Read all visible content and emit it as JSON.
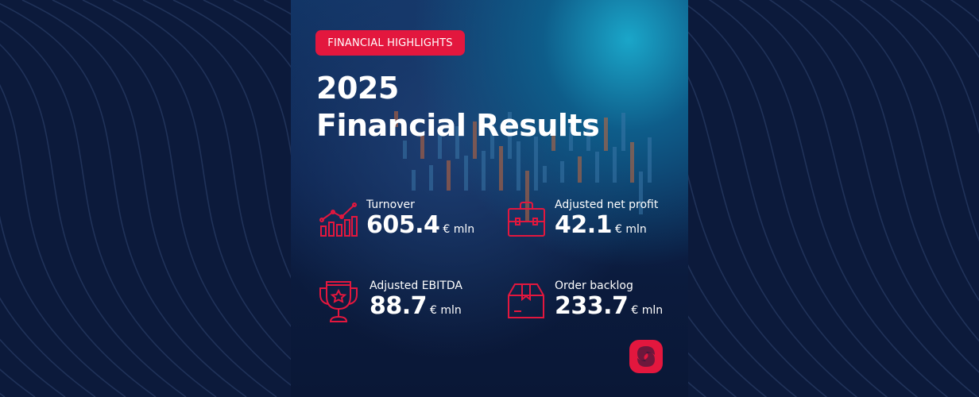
{
  "badge": "FINANCIAL HIGHLIGHTS",
  "title": {
    "line1": "2025",
    "line2": "Financial Results"
  },
  "stats": [
    {
      "label": "Turnover",
      "value": "605.4",
      "unit": "€ mln",
      "icon": "bar-chart-trend-icon"
    },
    {
      "label": "Adjusted net profit",
      "value": "42.1",
      "unit": "€ mln",
      "icon": "briefcase-icon"
    },
    {
      "label": "Adjusted EBITDA",
      "value": "88.7",
      "unit": "€ mln",
      "icon": "trophy-icon"
    },
    {
      "label": "Order backlog",
      "value": "233.7",
      "unit": "€ mln",
      "icon": "box-icon"
    }
  ],
  "colors": {
    "accent": "#e3173e",
    "background": "#0c1a3b",
    "text": "#ffffff"
  }
}
